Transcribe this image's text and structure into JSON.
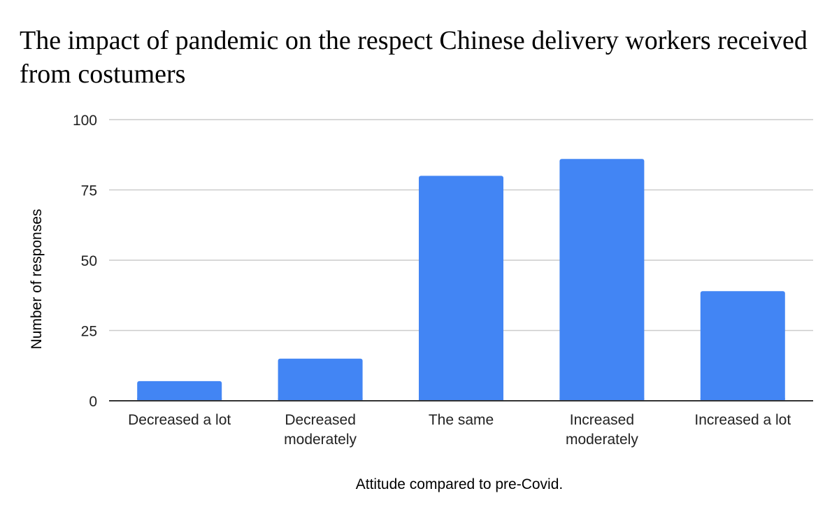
{
  "chart_data": {
    "type": "bar",
    "title": "The impact of pandemic on the respect Chinese delivery workers received from costumers",
    "xlabel": "Attitude compared to pre-Covid.",
    "ylabel": "Number of responses",
    "categories": [
      [
        "Decreased a lot"
      ],
      [
        "Decreased",
        "moderately"
      ],
      [
        "The same"
      ],
      [
        "Increased",
        "moderately"
      ],
      [
        "Increased a lot"
      ]
    ],
    "values": [
      7,
      15,
      80,
      86,
      39
    ],
    "ylim": [
      0,
      100
    ],
    "yticks": [
      "0",
      "25",
      "50",
      "75",
      "100"
    ],
    "ytick_values": [
      0,
      25,
      50,
      75,
      100
    ],
    "grid": true,
    "legend": "none",
    "bar_color": "#4285f4",
    "grid_color": "#cccccc",
    "axis_color": "#333333"
  }
}
